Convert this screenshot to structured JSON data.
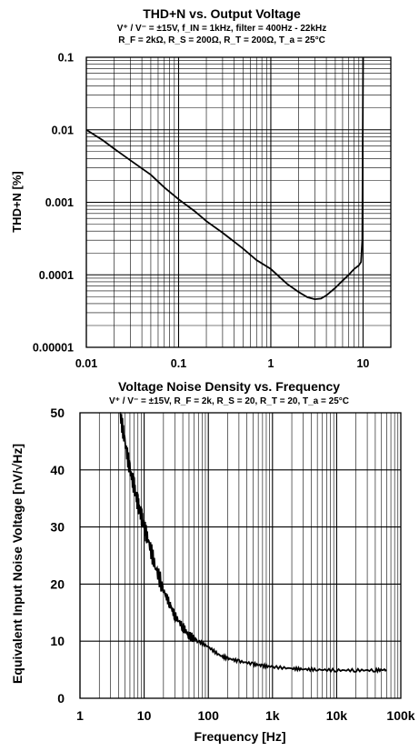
{
  "chart_data": [
    {
      "type": "line",
      "title": "THD+N vs. Output Voltage",
      "subtitle_line1": "V⁺ / V⁻ = ±15V, f_IN = 1kHz, filter = 400Hz - 22kHz",
      "subtitle_line2": "R_F = 2kΩ, R_S = 200Ω, R_T = 200Ω, T_a = 25°C",
      "xlabel": "",
      "ylabel": "THD+N [%]",
      "x_scale": "log",
      "y_scale": "log",
      "xlim": [
        0.01,
        20
      ],
      "ylim": [
        1e-05,
        0.1
      ],
      "grid": true,
      "x_ticks": [
        {
          "v": 0.01,
          "label": "0.01"
        },
        {
          "v": 0.1,
          "label": "0.1"
        },
        {
          "v": 1,
          "label": "1"
        },
        {
          "v": 10,
          "label": "10"
        }
      ],
      "y_ticks": [
        {
          "v": 1e-05,
          "label": "0.00001"
        },
        {
          "v": 0.0001,
          "label": "0.0001"
        },
        {
          "v": 0.001,
          "label": "0.001"
        },
        {
          "v": 0.01,
          "label": "0.01"
        },
        {
          "v": 0.1,
          "label": "0.1"
        }
      ],
      "series": [
        {
          "x": [
            0.01,
            0.015,
            0.02,
            0.03,
            0.05,
            0.07,
            0.1,
            0.15,
            0.2,
            0.3,
            0.5,
            0.7,
            1,
            1.5,
            2,
            2.5,
            3,
            3.5,
            4,
            5,
            6,
            7,
            8,
            9,
            9.5,
            9.8,
            10
          ],
          "y": [
            0.01,
            0.0072,
            0.0055,
            0.0038,
            0.0024,
            0.0016,
            0.0011,
            0.00075,
            0.00055,
            0.00038,
            0.00023,
            0.00016,
            0.00012,
            7.5e-05,
            5.8e-05,
            4.9e-05,
            4.6e-05,
            4.7e-05,
            5.2e-05,
            6.6e-05,
            8.3e-05,
            0.0001,
            0.00012,
            0.000135,
            0.00015,
            0.0003,
            0.1
          ]
        }
      ]
    },
    {
      "type": "line",
      "title": "Voltage Noise Density vs. Frequency",
      "subtitle_line1": "V⁺ / V⁻ = ±15V, R_F = 2k, R_S = 20, R_T = 20, T_a = 25°C",
      "xlabel": "Frequency [Hz]",
      "ylabel": "Equivalent Input Noise Voltage [nV/√Hz]",
      "x_scale": "log",
      "y_scale": "linear",
      "xlim": [
        1,
        100000
      ],
      "ylim": [
        0,
        50
      ],
      "grid": true,
      "x_ticks": [
        {
          "v": 1,
          "label": "1"
        },
        {
          "v": 10,
          "label": "10"
        },
        {
          "v": 100,
          "label": "100"
        },
        {
          "v": 1000,
          "label": "1k"
        },
        {
          "v": 10000,
          "label": "10k"
        },
        {
          "v": 100000,
          "label": "100k"
        }
      ],
      "y_ticks": [
        {
          "v": 0,
          "label": "0"
        },
        {
          "v": 10,
          "label": "10"
        },
        {
          "v": 20,
          "label": "20"
        },
        {
          "v": 30,
          "label": "30"
        },
        {
          "v": 40,
          "label": "40"
        },
        {
          "v": 50,
          "label": "50"
        }
      ],
      "series": [
        {
          "x": [
            4.2,
            5,
            6,
            7,
            8,
            9,
            10,
            12,
            15,
            20,
            25,
            30,
            40,
            50,
            70,
            100,
            150,
            200,
            300,
            500,
            700,
            1000,
            2000,
            3000,
            5000,
            10000,
            20000,
            40000,
            60000
          ],
          "y": [
            50,
            45,
            40,
            37,
            34,
            32,
            30,
            27,
            23,
            19,
            16.5,
            14.5,
            12.5,
            11,
            10,
            9,
            7.5,
            7,
            6.5,
            6,
            5.7,
            5.5,
            5.2,
            5.1,
            5.0,
            4.9,
            4.9,
            4.9,
            5.0
          ]
        }
      ]
    }
  ]
}
